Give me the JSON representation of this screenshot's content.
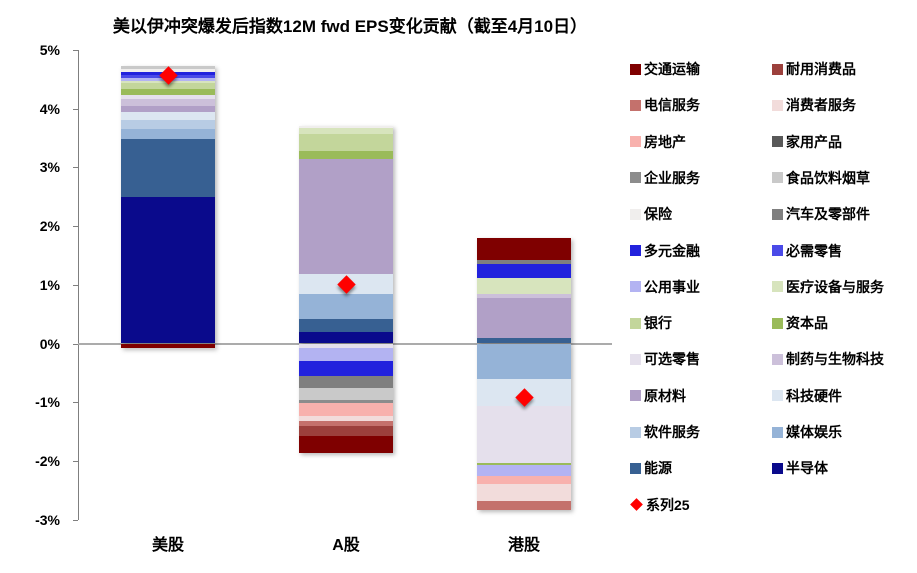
{
  "title": "美以伊冲突爆发后指数12M fwd EPS变化贡献（截至4月10日）",
  "chart_data": {
    "type": "bar",
    "stacked": true,
    "title": "美以伊冲突爆发后指数12M fwd EPS变化贡献（截至4月10日）",
    "xlabel": "",
    "ylabel": "",
    "ylim": [
      -3,
      5
    ],
    "grid": false,
    "legend_position": "right",
    "categories": [
      "美股",
      "A股",
      "港股"
    ],
    "yticks": [
      "5%",
      "4%",
      "3%",
      "2%",
      "1%",
      "0%",
      "-1%",
      "-2%",
      "-3%"
    ],
    "ytick_values": [
      5,
      4,
      3,
      2,
      1,
      0,
      -1,
      -2,
      -3
    ],
    "colors": {
      "交通运输": "#7F0000",
      "耐用消费品": "#9C403C",
      "电信服务": "#C4716C",
      "消费者服务": "#F2DCDB",
      "房地产": "#F8B1AD",
      "家用产品": "#595959",
      "企业服务": "#8C8C8C",
      "食品饮料烟草": "#C9C9C9",
      "保险": "#F0EEED",
      "汽车及零部件": "#7F7F7F",
      "多元金融": "#2222DD",
      "必需零售": "#4A4AE8",
      "公用事业": "#B3B3F2",
      "医疗设备与服务": "#D7E4BD",
      "银行": "#C3D69B",
      "资本品": "#9ABB59",
      "可选零售": "#E5E0EC",
      "制药与生物科技": "#CCC0DA",
      "原材料": "#B1A0C7",
      "科技硬件": "#DCE6F1",
      "软件服务": "#B8CCE4",
      "媒体娱乐": "#95B3D7",
      "能源": "#376092",
      "半导体": "#0A0A8C",
      "系列25": "#FF0000"
    },
    "bars": [
      {
        "category": "美股",
        "pos": [
          {
            "name": "半导体",
            "value": 2.49
          },
          {
            "name": "能源",
            "value": 1.0
          },
          {
            "name": "媒体娱乐",
            "value": 0.17
          },
          {
            "name": "软件服务",
            "value": 0.15
          },
          {
            "name": "科技硬件",
            "value": 0.14
          },
          {
            "name": "原材料",
            "value": 0.1
          },
          {
            "name": "制药与生物科技",
            "value": 0.12
          },
          {
            "name": "可选零售",
            "value": 0.06
          },
          {
            "name": "资本品",
            "value": 0.1
          },
          {
            "name": "银行",
            "value": 0.1
          },
          {
            "name": "医疗设备与服务",
            "value": 0.05
          },
          {
            "name": "公用事业",
            "value": 0.05
          },
          {
            "name": "必需零售",
            "value": 0.05
          },
          {
            "name": "多元金融",
            "value": 0.05
          },
          {
            "name": "保险",
            "value": 0.05
          },
          {
            "name": "食品饮料烟草",
            "value": 0.05
          }
        ],
        "neg": [
          {
            "name": "交通运输",
            "value": -0.08
          }
        ]
      },
      {
        "category": "A股",
        "pos": [
          {
            "name": "半导体",
            "value": 0.2
          },
          {
            "name": "能源",
            "value": 0.22
          },
          {
            "name": "媒体娱乐",
            "value": 0.42
          },
          {
            "name": "科技硬件",
            "value": 0.34
          },
          {
            "name": "原材料",
            "value": 1.96
          },
          {
            "name": "资本品",
            "value": 0.14
          },
          {
            "name": "银行",
            "value": 0.29
          },
          {
            "name": "医疗设备与服务",
            "value": 0.1
          },
          {
            "name": "保险",
            "value": 0.04
          }
        ],
        "neg": [
          {
            "name": "可选零售",
            "value": -0.08
          },
          {
            "name": "公用事业",
            "value": -0.22
          },
          {
            "name": "多元金融",
            "value": -0.26
          },
          {
            "name": "汽车及零部件",
            "value": -0.2
          },
          {
            "name": "食品饮料烟草",
            "value": -0.2
          },
          {
            "name": "企业服务",
            "value": -0.05
          },
          {
            "name": "房地产",
            "value": -0.22
          },
          {
            "name": "消费者服务",
            "value": -0.09
          },
          {
            "name": "电信服务",
            "value": -0.09
          },
          {
            "name": "耐用消费品",
            "value": -0.17
          },
          {
            "name": "交通运输",
            "value": -0.29
          }
        ]
      },
      {
        "category": "港股",
        "pos": [
          {
            "name": "能源",
            "value": 0.1
          },
          {
            "name": "原材料",
            "value": 0.68
          },
          {
            "name": "制药与生物科技",
            "value": 0.07
          },
          {
            "name": "医疗设备与服务",
            "value": 0.26
          },
          {
            "name": "多元金融",
            "value": 0.24
          },
          {
            "name": "汽车及零部件",
            "value": 0.07
          },
          {
            "name": "交通运输",
            "value": 0.37
          }
        ],
        "neg": [
          {
            "name": "媒体娱乐",
            "value": -0.6
          },
          {
            "name": "科技硬件",
            "value": -0.46
          },
          {
            "name": "可选零售",
            "value": -0.97
          },
          {
            "name": "资本品",
            "value": -0.04
          },
          {
            "name": "公用事业",
            "value": -0.19
          },
          {
            "name": "房地产",
            "value": -0.14
          },
          {
            "name": "消费者服务",
            "value": -0.29
          },
          {
            "name": "电信服务",
            "value": -0.14
          }
        ]
      }
    ],
    "markers": {
      "name": "系列25",
      "shape": "diamond",
      "color": "#FF0000",
      "values": [
        4.57,
        1.0,
        -0.92
      ]
    }
  },
  "legend": {
    "columns": [
      [
        {
          "label": "交通运输",
          "type": "square"
        },
        {
          "label": "电信服务",
          "type": "square"
        },
        {
          "label": "房地产",
          "type": "square"
        },
        {
          "label": "企业服务",
          "type": "square"
        },
        {
          "label": "保险",
          "type": "square"
        },
        {
          "label": "多元金融",
          "type": "square"
        },
        {
          "label": "公用事业",
          "type": "square"
        },
        {
          "label": "银行",
          "type": "square"
        },
        {
          "label": "可选零售",
          "type": "square"
        },
        {
          "label": "原材料",
          "type": "square"
        },
        {
          "label": "软件服务",
          "type": "square"
        },
        {
          "label": "能源",
          "type": "square"
        },
        {
          "label": "系列25",
          "type": "diamond"
        }
      ],
      [
        {
          "label": "耐用消费品",
          "type": "square"
        },
        {
          "label": "消费者服务",
          "type": "square"
        },
        {
          "label": "家用产品",
          "type": "square"
        },
        {
          "label": "食品饮料烟草",
          "type": "square"
        },
        {
          "label": "汽车及零部件",
          "type": "square"
        },
        {
          "label": "必需零售",
          "type": "square"
        },
        {
          "label": "医疗设备与服务",
          "type": "square"
        },
        {
          "label": "资本品",
          "type": "square"
        },
        {
          "label": "制药与生物科技",
          "type": "square"
        },
        {
          "label": "科技硬件",
          "type": "square"
        },
        {
          "label": "媒体娱乐",
          "type": "square"
        },
        {
          "label": "半导体",
          "type": "square"
        }
      ]
    ]
  }
}
